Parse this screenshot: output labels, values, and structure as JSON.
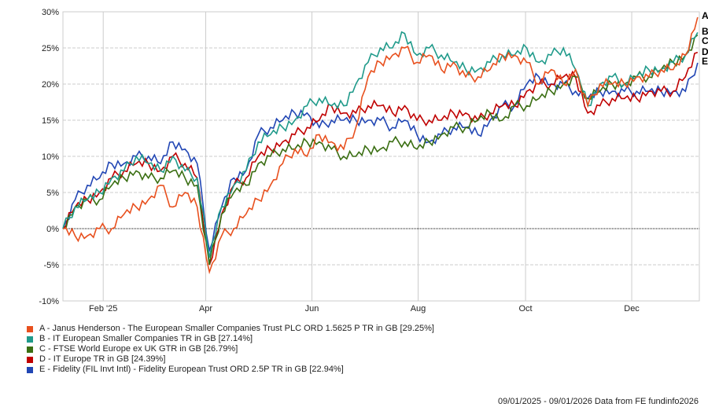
{
  "chart_data": {
    "type": "line",
    "title": "",
    "xlabel": "",
    "ylabel": "",
    "x_start": "09/01/2025",
    "x_end": "09/01/2026",
    "x_unit": "weeks since start",
    "x": [
      0,
      1,
      2,
      3,
      4,
      5,
      6,
      7,
      8,
      9,
      10,
      11,
      12,
      13,
      14,
      15,
      16,
      17,
      18,
      19,
      20,
      21,
      22,
      23,
      24,
      25,
      26,
      27,
      28,
      29,
      30,
      31,
      32,
      33,
      34,
      35,
      36,
      37,
      38,
      39,
      40,
      41,
      42,
      43,
      44,
      45,
      46,
      47,
      48,
      49,
      50,
      51,
      52
    ],
    "x_ticks": [
      {
        "label": "Feb '25",
        "week": 3.3
      },
      {
        "label": "Apr",
        "week": 11.7
      },
      {
        "label": "Jun",
        "week": 20.4
      },
      {
        "label": "Aug",
        "week": 29.1
      },
      {
        "label": "Oct",
        "week": 37.9
      },
      {
        "label": "Dec",
        "week": 46.6
      }
    ],
    "ylim": [
      -10,
      30
    ],
    "y_ticks": [
      -10,
      -5,
      0,
      5,
      10,
      15,
      20,
      25,
      30
    ],
    "y_tick_labels": [
      "-10%",
      "-5%",
      "0%",
      "5%",
      "10%",
      "15%",
      "20%",
      "25%",
      "30%"
    ],
    "grid": true,
    "legend_position": "bottom-left",
    "series": [
      {
        "id": "A",
        "name": "A - Janus Henderson - The European Smaller Companies Trust PLC ORD 1.5625 P TR in GB [29.25%]",
        "color": "#e8501e",
        "values": [
          0,
          -1,
          -1,
          0,
          0,
          2,
          3,
          4,
          6,
          3,
          5,
          3,
          -6,
          -1,
          0,
          2,
          4,
          6,
          9,
          11,
          10,
          13,
          12,
          11,
          14,
          21,
          23,
          24,
          25,
          23,
          24,
          22,
          23,
          21,
          21,
          22,
          24,
          24,
          23,
          20,
          22,
          20,
          22,
          17,
          20,
          20,
          20,
          21,
          21,
          22,
          22,
          24,
          29.25
        ]
      },
      {
        "id": "B",
        "name": "B - IT European Smaller Companies TR in GB [27.14%]",
        "color": "#1f9a8a",
        "values": [
          0,
          3,
          4,
          5,
          7,
          8,
          10,
          9,
          8,
          10,
          8,
          7,
          -4,
          3,
          6,
          8,
          12,
          13,
          14,
          15,
          17,
          18,
          17,
          17,
          20,
          23,
          25,
          25,
          27,
          24,
          25,
          24,
          23,
          22,
          22,
          23,
          24,
          24,
          25,
          23,
          24,
          25,
          22,
          17,
          20,
          21,
          20,
          21,
          22,
          22,
          23,
          24,
          27.14
        ]
      },
      {
        "id": "C",
        "name": "C - FTSE World Europe ex UK GTR in GB [26.79%]",
        "color": "#3a6e12",
        "values": [
          0,
          3,
          4,
          4,
          6,
          7,
          8,
          7,
          7,
          8,
          7,
          6,
          -5,
          2,
          5,
          6,
          9,
          10,
          11,
          11,
          12,
          12,
          11,
          10,
          10,
          11,
          11,
          12,
          12,
          11,
          12,
          13,
          14,
          14,
          15,
          16,
          15,
          17,
          17,
          18,
          19,
          20,
          21,
          18,
          19,
          20,
          20,
          21,
          21,
          22,
          23,
          24,
          26.79
        ]
      },
      {
        "id": "D",
        "name": "D - IT Europe TR in GB [24.39%]",
        "color": "#c00000",
        "values": [
          0,
          3,
          4,
          5,
          7,
          8,
          9,
          9,
          8,
          10,
          9,
          7,
          -5,
          2,
          6,
          7,
          10,
          11,
          12,
          13,
          14,
          15,
          17,
          16,
          16,
          17,
          17,
          16,
          17,
          15,
          15,
          15,
          16,
          16,
          15,
          16,
          17,
          17,
          19,
          20,
          20,
          21,
          21,
          16,
          17,
          18,
          18,
          18,
          19,
          19,
          19,
          21,
          24.39
        ]
      },
      {
        "id": "E",
        "name": "E - Fidelity (FIL Invt Intl) - Fidelity European Trust ORD 2.5P TR in GB [22.94%]",
        "color": "#2146b4",
        "values": [
          0,
          4,
          6,
          7,
          9,
          9,
          10,
          10,
          9,
          12,
          11,
          9,
          -3,
          3,
          7,
          8,
          13,
          14,
          15,
          16,
          16,
          14,
          15,
          15,
          15,
          15,
          15,
          14,
          15,
          13,
          12,
          13,
          14,
          14,
          13,
          15,
          17,
          17,
          20,
          21,
          20,
          20,
          19,
          18,
          19,
          19,
          19,
          19,
          19,
          19,
          19,
          19,
          22.94
        ]
      }
    ]
  },
  "footer": "09/01/2025 - 09/01/2026 Data from FE fundinfo2026"
}
